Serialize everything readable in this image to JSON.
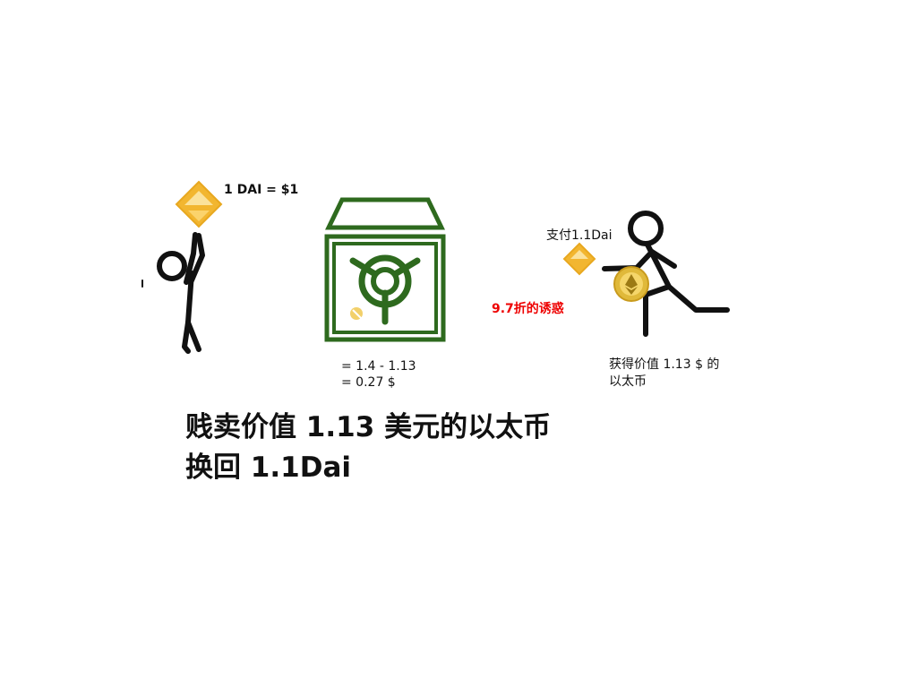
{
  "left_figure": {
    "price_label": "1 DAI = $1"
  },
  "vault": {
    "calc_line1": "= 1.4 - 1.13",
    "calc_line2": "= 0.27 $"
  },
  "middle": {
    "discount_label": "9.7折的诱惑"
  },
  "right_figure": {
    "pay_label": "支付1.1Dai",
    "get_line1": "获得价值 1.13 $ 的",
    "get_line2": "以太币"
  },
  "caption": {
    "line1": "贱卖价值 1.13 美元的以太币",
    "line2": "换回 1.1Dai"
  },
  "colors": {
    "vault_green": "#2e6a1e",
    "dai_gold": "#f2b630",
    "eth_gold": "#e0b93a",
    "highlight_red": "#ee0000"
  },
  "icons": [
    "dai-coin-icon",
    "stick-figure-icon",
    "vault-icon",
    "eth-coin-icon"
  ]
}
